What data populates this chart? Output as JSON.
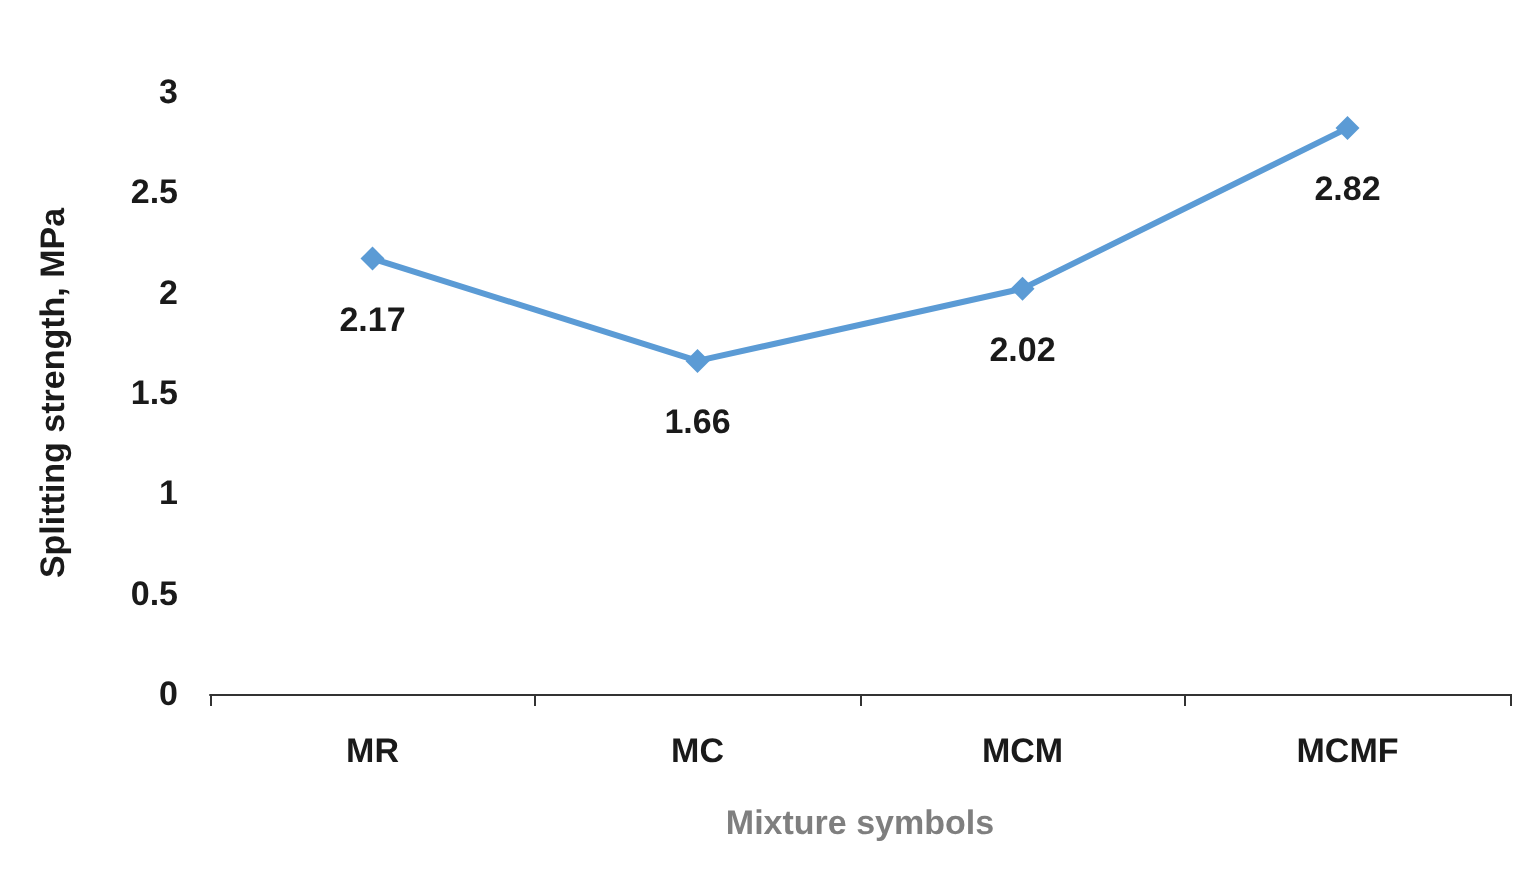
{
  "chart_data": {
    "type": "line",
    "xlabel": "Mixture symbols",
    "ylabel": "Splitting strength, MPa",
    "categories": [
      "MR",
      "MC",
      "MCM",
      "MCMF"
    ],
    "series": [
      {
        "color": "#5b9bd5",
        "values": [
          2.17,
          1.66,
          2.02,
          2.82
        ]
      }
    ],
    "ylim": [
      0,
      3
    ],
    "yticks": [
      0,
      0.5,
      1,
      1.5,
      2,
      2.5,
      3
    ],
    "data_labels": true,
    "marker": "diamond",
    "line_style": "solid",
    "grid": false
  }
}
